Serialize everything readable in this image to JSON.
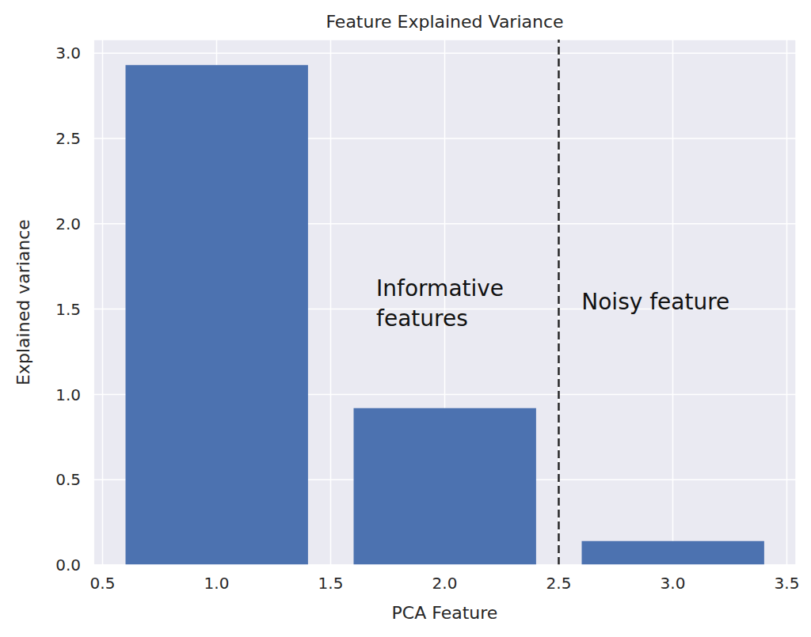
{
  "chart_data": {
    "type": "bar",
    "title": "Feature Explained Variance",
    "xlabel": "PCA Feature",
    "ylabel": "Explained variance",
    "x": [
      1,
      2,
      3
    ],
    "values": [
      2.93,
      0.92,
      0.14
    ],
    "color": "#4c72b0",
    "xlim": [
      0.46,
      3.54
    ],
    "ylim": [
      0,
      3.08
    ],
    "xticks": [
      0.5,
      {
        "value": 1,
        "label": "1.0"
      },
      1.5,
      {
        "value": 2,
        "label": "2.0"
      },
      2.5,
      {
        "value": 3,
        "label": "3.0"
      },
      3.5
    ],
    "yticks": [
      {
        "value": 0,
        "label": "0.0"
      },
      0.5,
      {
        "value": 1,
        "label": "1.0"
      },
      1.5,
      {
        "value": 2,
        "label": "2.0"
      },
      2.5,
      {
        "value": 3,
        "label": "3.0"
      }
    ],
    "grid": true,
    "vline": {
      "x": 2.5,
      "line_style": "dashed"
    },
    "annotations": [
      {
        "text": "Informative\nfeatures",
        "x": 1.7,
        "y": 1.4
      },
      {
        "text": "Noisy feature",
        "x": 2.6,
        "y": 1.5
      }
    ]
  }
}
